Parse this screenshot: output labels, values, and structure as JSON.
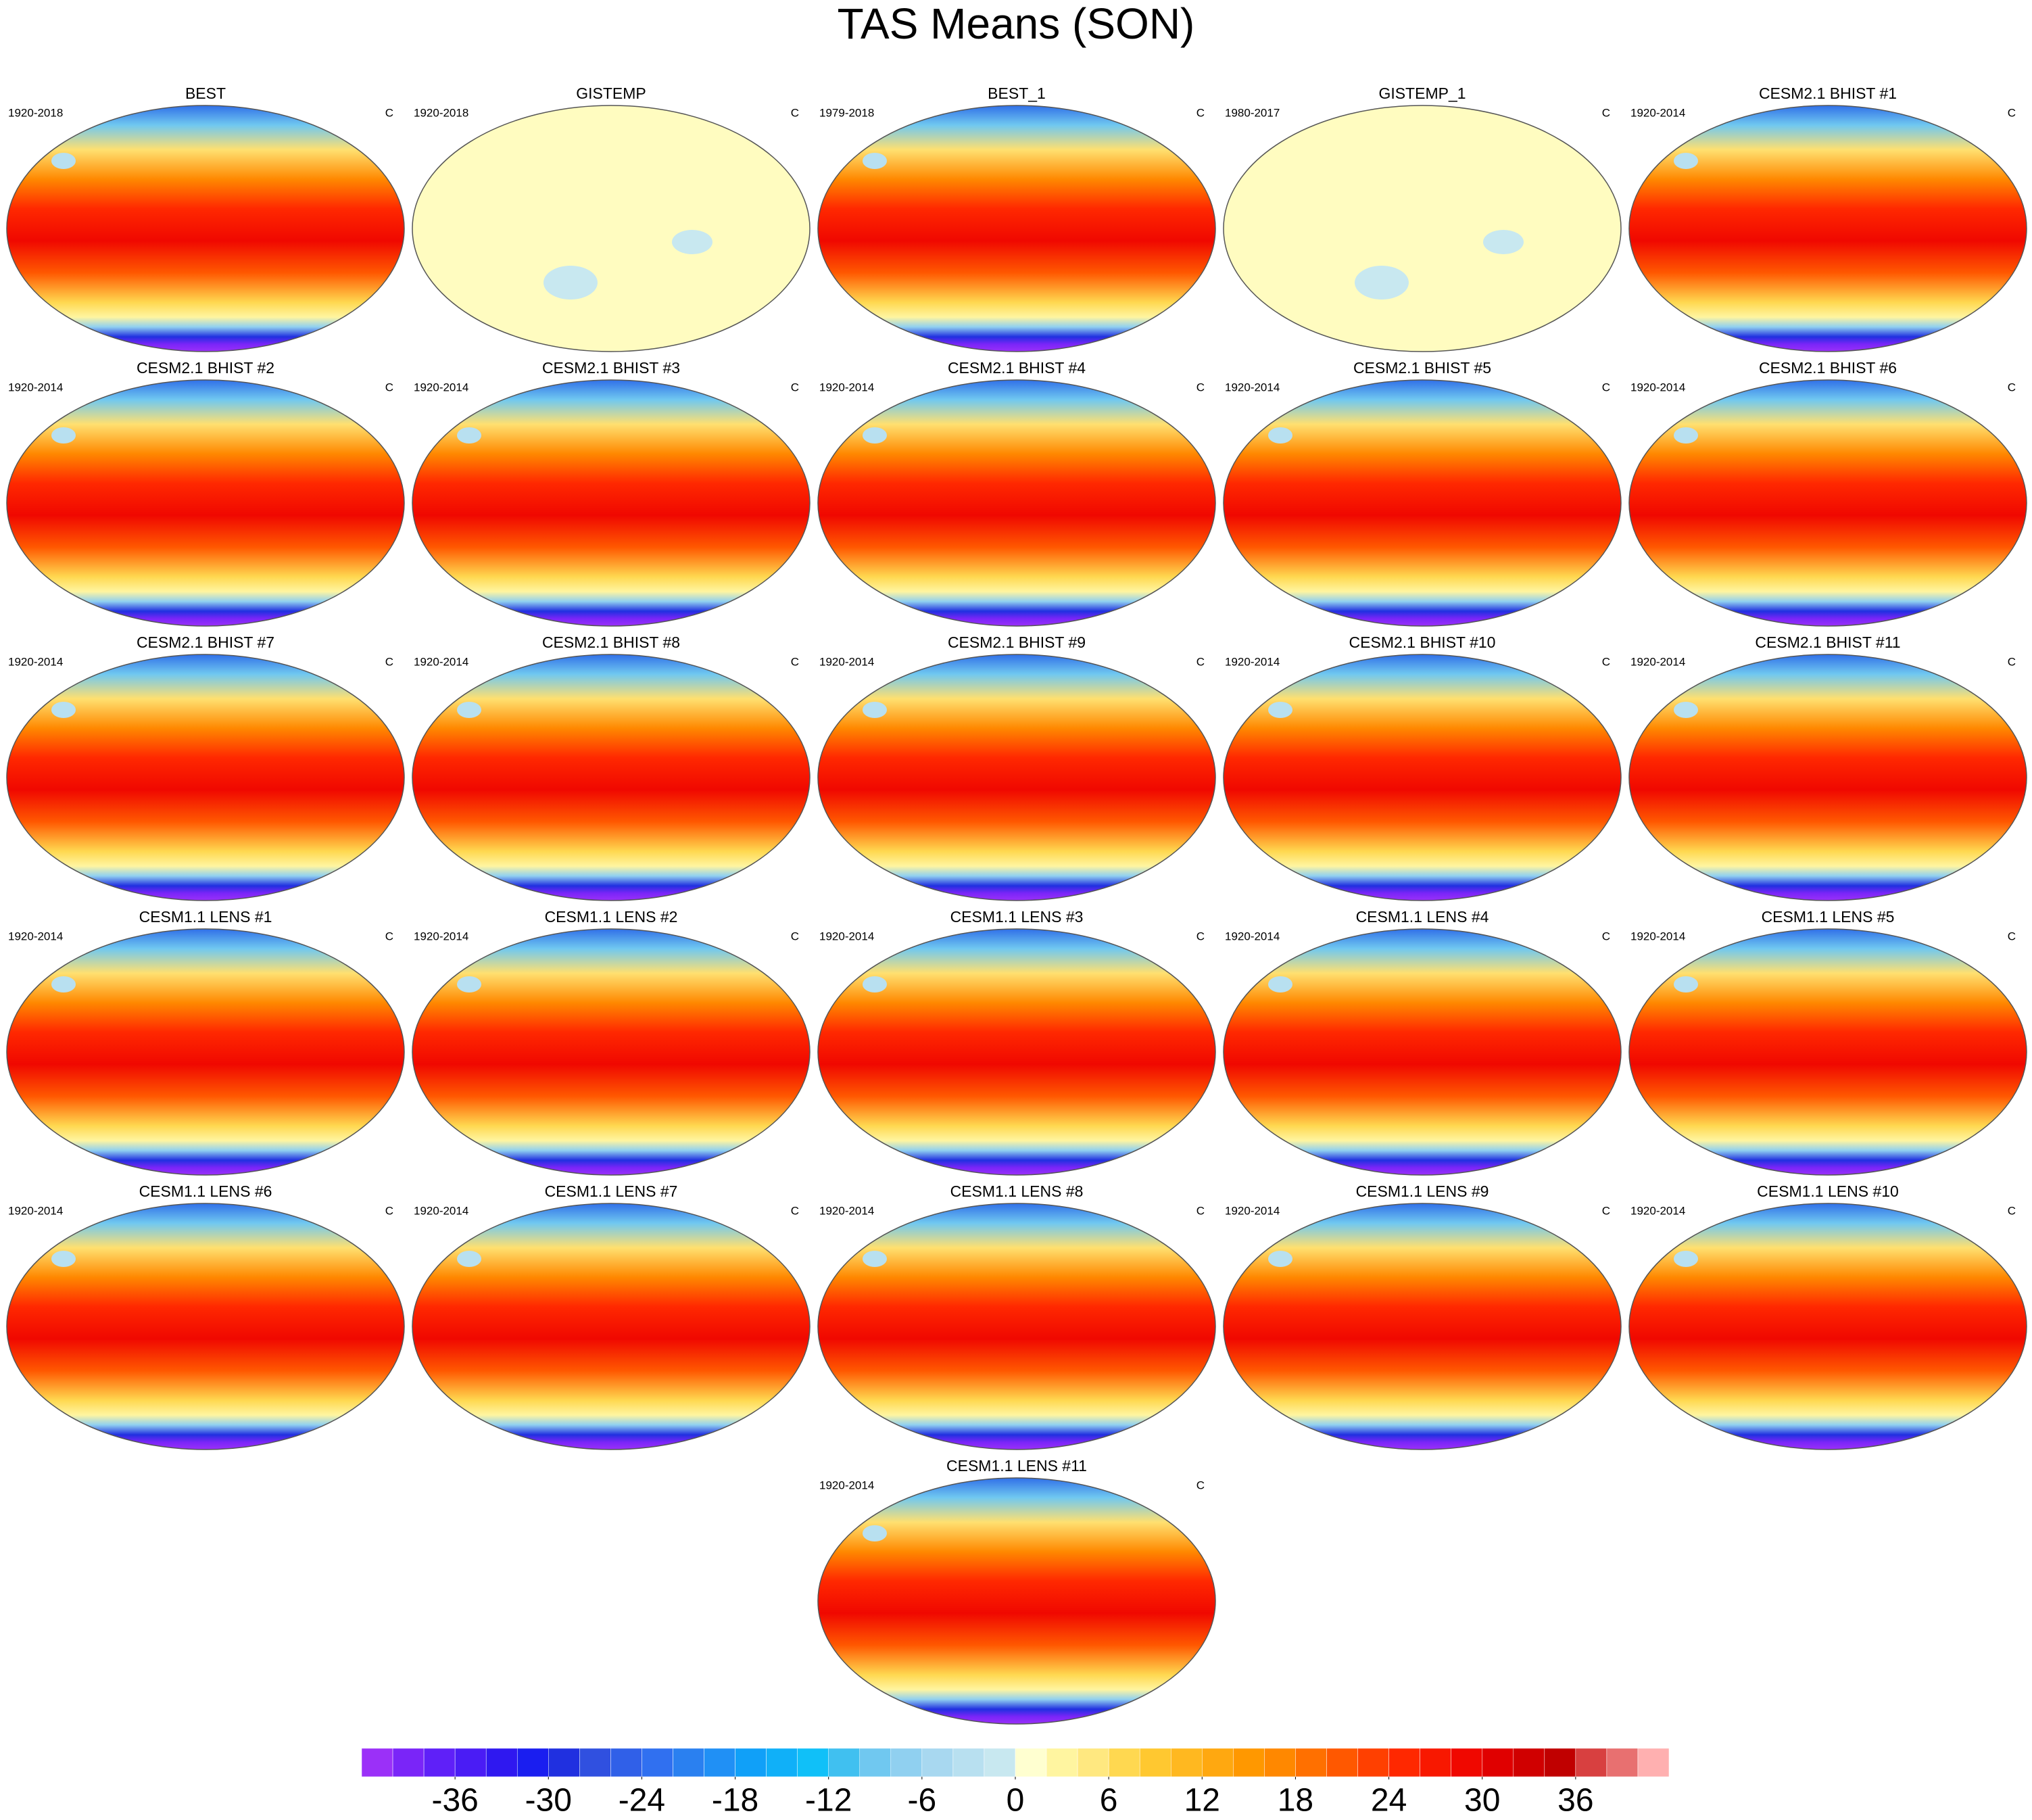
{
  "title": "TAS Means (SON)",
  "panels": [
    {
      "title": "BEST",
      "period": "1920-2018",
      "units": "C"
    },
    {
      "title": "GISTEMP",
      "period": "1920-2018",
      "units": "C",
      "fill": "#fffcc0"
    },
    {
      "title": "BEST_1",
      "period": "1979-2018",
      "units": "C"
    },
    {
      "title": "GISTEMP_1",
      "period": "1980-2017",
      "units": "C",
      "fill": "#fffcc0"
    },
    {
      "title": "CESM2.1 BHIST #1",
      "period": "1920-2014",
      "units": "C"
    },
    {
      "title": "CESM2.1 BHIST #2",
      "period": "1920-2014",
      "units": "C"
    },
    {
      "title": "CESM2.1 BHIST #3",
      "period": "1920-2014",
      "units": "C"
    },
    {
      "title": "CESM2.1 BHIST #4",
      "period": "1920-2014",
      "units": "C"
    },
    {
      "title": "CESM2.1 BHIST #5",
      "period": "1920-2014",
      "units": "C"
    },
    {
      "title": "CESM2.1 BHIST #6",
      "period": "1920-2014",
      "units": "C"
    },
    {
      "title": "CESM2.1 BHIST #7",
      "period": "1920-2014",
      "units": "C"
    },
    {
      "title": "CESM2.1 BHIST #8",
      "period": "1920-2014",
      "units": "C"
    },
    {
      "title": "CESM2.1 BHIST #9",
      "period": "1920-2014",
      "units": "C"
    },
    {
      "title": "CESM2.1 BHIST #10",
      "period": "1920-2014",
      "units": "C"
    },
    {
      "title": "CESM2.1 BHIST #11",
      "period": "1920-2014",
      "units": "C"
    },
    {
      "title": "CESM1.1 LENS #1",
      "period": "1920-2014",
      "units": "C"
    },
    {
      "title": "CESM1.1 LENS #2",
      "period": "1920-2014",
      "units": "C"
    },
    {
      "title": "CESM1.1 LENS #3",
      "period": "1920-2014",
      "units": "C"
    },
    {
      "title": "CESM1.1 LENS #4",
      "period": "1920-2014",
      "units": "C"
    },
    {
      "title": "CESM1.1 LENS #5",
      "period": "1920-2014",
      "units": "C"
    },
    {
      "title": "CESM1.1 LENS #6",
      "period": "1920-2014",
      "units": "C"
    },
    {
      "title": "CESM1.1 LENS #7",
      "period": "1920-2014",
      "units": "C"
    },
    {
      "title": "CESM1.1 LENS #8",
      "period": "1920-2014",
      "units": "C"
    },
    {
      "title": "CESM1.1 LENS #9",
      "period": "1920-2014",
      "units": "C"
    },
    {
      "title": "CESM1.1 LENS #10",
      "period": "1920-2014",
      "units": "C"
    },
    {
      "title": "CESM1.1 LENS #11",
      "period": "1920-2014",
      "units": "C"
    }
  ],
  "colorbar": {
    "lim": [
      -42,
      42
    ],
    "ticks": [
      -36,
      -30,
      -24,
      -18,
      -12,
      -6,
      0,
      6,
      12,
      18,
      24,
      30,
      36
    ],
    "colors": [
      "#9b30f8",
      "#7a25f8",
      "#5f20f8",
      "#4a1cf5",
      "#2f18f0",
      "#1a1ef0",
      "#2030e0",
      "#3050e0",
      "#3060e8",
      "#3070f0",
      "#2a80f0",
      "#2090f5",
      "#10a0f8",
      "#10b0f8",
      "#10c0f8",
      "#40c0f0",
      "#70c8f0",
      "#90d0f0",
      "#a8d8f0",
      "#b8e0f0",
      "#c8e8f0",
      "#ffffd0",
      "#fff5a0",
      "#ffe880",
      "#ffd850",
      "#ffc830",
      "#ffb820",
      "#ffa810",
      "#ff9800",
      "#ff8800",
      "#ff7000",
      "#ff5800",
      "#ff4000",
      "#ff2800",
      "#f81800",
      "#f00800",
      "#e00000",
      "#d00000",
      "#c00000",
      "#d84040",
      "#e87070",
      "#ffb0b0"
    ]
  }
}
